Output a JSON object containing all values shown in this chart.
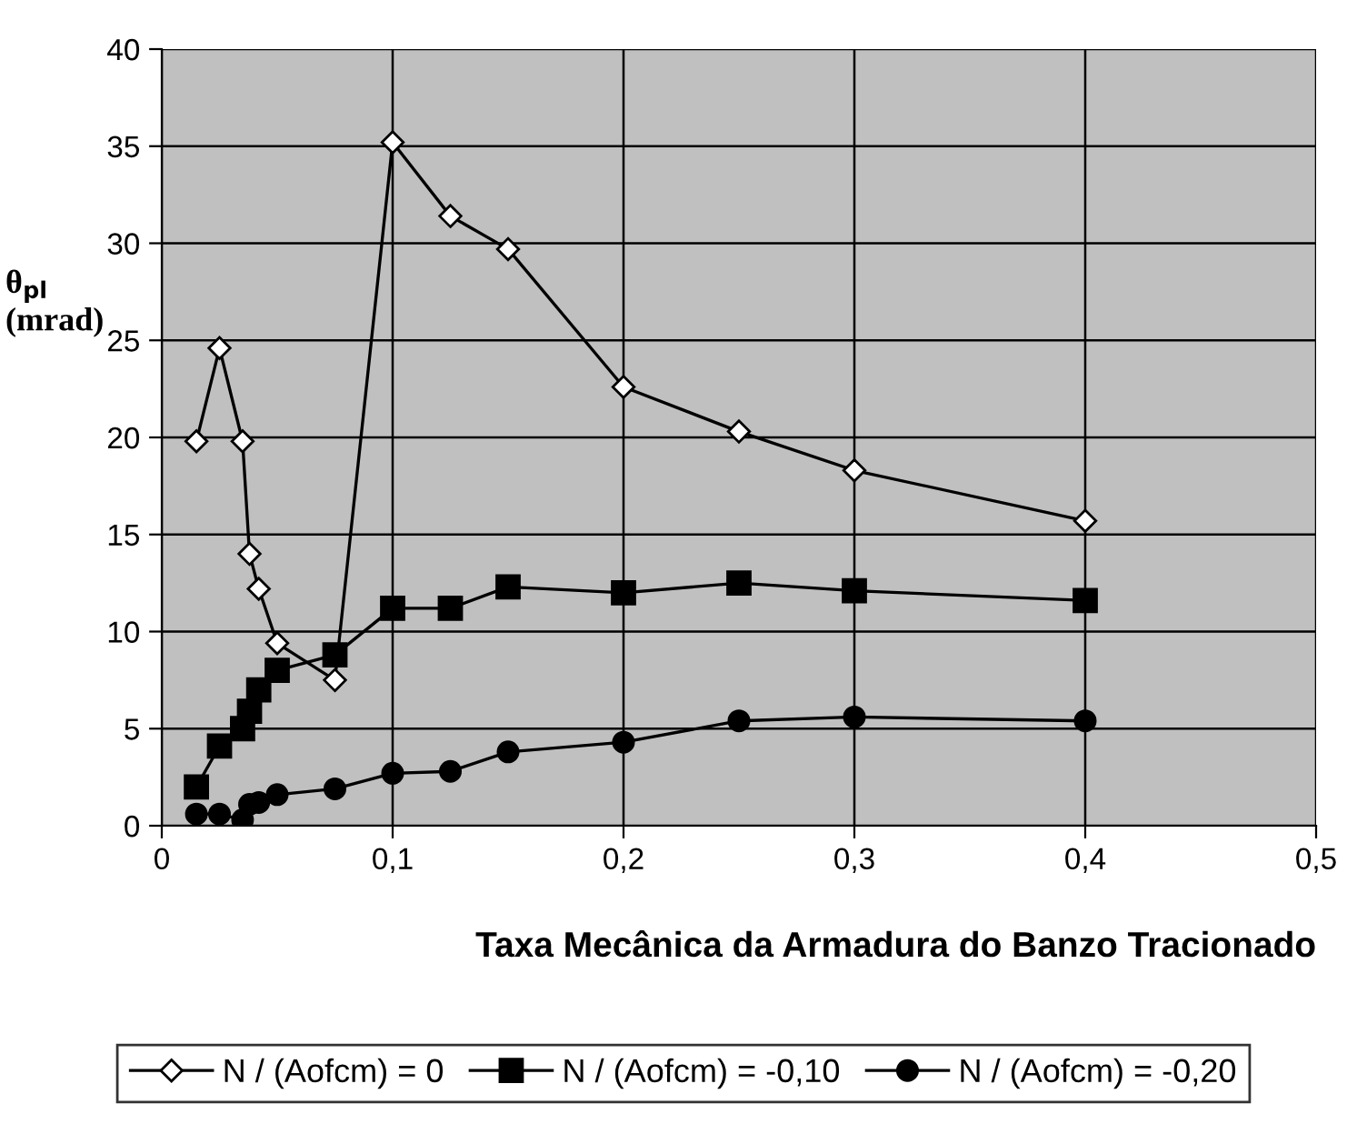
{
  "chart_data": {
    "type": "line",
    "xlabel": "Taxa Mecânica da Armadura do Banzo Tracionado",
    "ylabel": "θ$_{pl}$\n(mrad)",
    "x": [
      0.015,
      0.025,
      0.035,
      0.038,
      0.042,
      0.05,
      0.075,
      0.1,
      0.125,
      0.15,
      0.2,
      0.25,
      0.3,
      0.4
    ],
    "series": [
      {
        "name": "N / (Aofcm) = 0",
        "color": "#000000",
        "marker": "diamond",
        "values": [
          19.8,
          24.6,
          19.8,
          14.0,
          12.2,
          9.4,
          7.5,
          35.2,
          31.4,
          29.7,
          22.6,
          20.3,
          18.3,
          15.7
        ]
      },
      {
        "name": "N / (Aofcm) = -0,10",
        "color": "#000000",
        "marker": "square",
        "values": [
          2.0,
          4.1,
          5.0,
          5.9,
          7.0,
          8.0,
          8.8,
          11.2,
          11.2,
          12.3,
          12.0,
          12.5,
          12.1,
          11.6
        ]
      },
      {
        "name": "N / (Aofcm) = -0,20",
        "color": "#000000",
        "marker": "circle",
        "values": [
          0.6,
          0.6,
          0.3,
          1.1,
          1.2,
          1.6,
          1.9,
          2.7,
          2.8,
          3.8,
          4.3,
          5.4,
          5.6,
          5.4
        ]
      }
    ],
    "xlim": [
      0,
      0.5
    ],
    "xticks": [
      0,
      {
        "value": 0.1,
        "label": "0,1"
      },
      {
        "value": 0.2,
        "label": "0,2"
      },
      {
        "value": 0.3,
        "label": "0,3"
      },
      {
        "value": 0.4,
        "label": "0,4"
      },
      {
        "value": 0.5,
        "label": "0,5"
      }
    ],
    "ylim": [
      0,
      40
    ],
    "yticks": [
      0,
      5,
      10,
      15,
      20,
      25,
      30,
      35,
      40
    ],
    "grid": true,
    "legend": "bottom",
    "line_style": "solid"
  }
}
